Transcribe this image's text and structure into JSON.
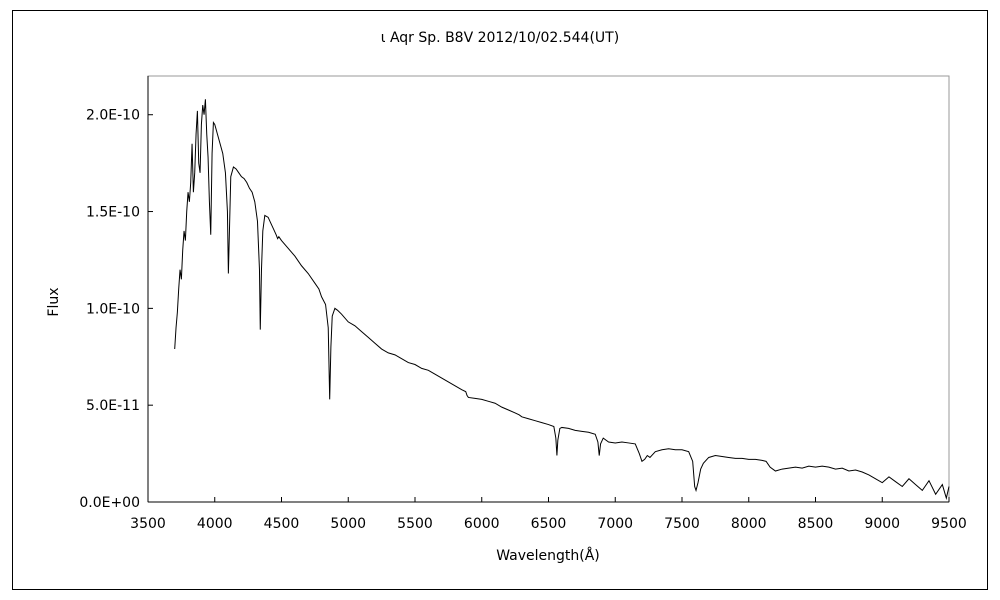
{
  "chart_data": {
    "type": "line",
    "title": "ι  Aqr   Sp. B8V   2012/10/02.544(UT)",
    "xlabel": "Wavelength(Å)",
    "ylabel": "Flux",
    "xlim": [
      3500,
      9500
    ],
    "ylim": [
      0,
      2.2e-10
    ],
    "xticks": [
      "3500",
      "4000",
      "4500",
      "5000",
      "5500",
      "6000",
      "6500",
      "7000",
      "7500",
      "8000",
      "8500",
      "9000",
      "9500"
    ],
    "yticks": [
      "0.0E+00",
      "5.0E-11",
      "1.0E-10",
      "1.5E-10",
      "2.0E-10"
    ],
    "grid": false,
    "series": [
      {
        "values": [
          [
            3700,
            7.9e-11
          ],
          [
            3710,
            9e-11
          ],
          [
            3720,
            9.8e-11
          ],
          [
            3730,
            1.1e-10
          ],
          [
            3740,
            1.2e-10
          ],
          [
            3750,
            1.15e-10
          ],
          [
            3760,
            1.3e-10
          ],
          [
            3770,
            1.4e-10
          ],
          [
            3780,
            1.35e-10
          ],
          [
            3790,
            1.5e-10
          ],
          [
            3800,
            1.6e-10
          ],
          [
            3810,
            1.55e-10
          ],
          [
            3820,
            1.65e-10
          ],
          [
            3830,
            1.85e-10
          ],
          [
            3840,
            1.6e-10
          ],
          [
            3850,
            1.7e-10
          ],
          [
            3860,
            1.9e-10
          ],
          [
            3870,
            2.02e-10
          ],
          [
            3880,
            1.75e-10
          ],
          [
            3890,
            1.7e-10
          ],
          [
            3900,
            1.95e-10
          ],
          [
            3910,
            2.05e-10
          ],
          [
            3920,
            2e-10
          ],
          [
            3930,
            2.08e-10
          ],
          [
            3940,
            1.9e-10
          ],
          [
            3950,
            1.78e-10
          ],
          [
            3960,
            1.55e-10
          ],
          [
            3970,
            1.38e-10
          ],
          [
            3980,
            1.8e-10
          ],
          [
            3990,
            1.96e-10
          ],
          [
            4000,
            1.95e-10
          ],
          [
            4020,
            1.9e-10
          ],
          [
            4040,
            1.85e-10
          ],
          [
            4060,
            1.8e-10
          ],
          [
            4080,
            1.7e-10
          ],
          [
            4095,
            1.5e-10
          ],
          [
            4102,
            1.18e-10
          ],
          [
            4110,
            1.4e-10
          ],
          [
            4120,
            1.68e-10
          ],
          [
            4140,
            1.73e-10
          ],
          [
            4160,
            1.72e-10
          ],
          [
            4180,
            1.7e-10
          ],
          [
            4200,
            1.68e-10
          ],
          [
            4220,
            1.67e-10
          ],
          [
            4240,
            1.65e-10
          ],
          [
            4260,
            1.62e-10
          ],
          [
            4280,
            1.6e-10
          ],
          [
            4300,
            1.55e-10
          ],
          [
            4320,
            1.45e-10
          ],
          [
            4335,
            1.2e-10
          ],
          [
            4341,
            8.9e-11
          ],
          [
            4350,
            1.2e-10
          ],
          [
            4360,
            1.4e-10
          ],
          [
            4375,
            1.48e-10
          ],
          [
            4400,
            1.47e-10
          ],
          [
            4420,
            1.44e-10
          ],
          [
            4440,
            1.41e-10
          ],
          [
            4460,
            1.38e-10
          ],
          [
            4471,
            1.36e-10
          ],
          [
            4480,
            1.37e-10
          ],
          [
            4500,
            1.35e-10
          ],
          [
            4550,
            1.31e-10
          ],
          [
            4600,
            1.27e-10
          ],
          [
            4650,
            1.22e-10
          ],
          [
            4700,
            1.18e-10
          ],
          [
            4750,
            1.13e-10
          ],
          [
            4780,
            1.1e-10
          ],
          [
            4800,
            1.06e-10
          ],
          [
            4830,
            1.02e-10
          ],
          [
            4850,
            9e-11
          ],
          [
            4861,
            5.3e-11
          ],
          [
            4870,
            8e-11
          ],
          [
            4880,
            9.6e-11
          ],
          [
            4900,
            1e-10
          ],
          [
            4920,
            9.9e-11
          ],
          [
            4950,
            9.7e-11
          ],
          [
            5000,
            9.3e-11
          ],
          [
            5050,
            9.1e-11
          ],
          [
            5100,
            8.8e-11
          ],
          [
            5150,
            8.5e-11
          ],
          [
            5200,
            8.2e-11
          ],
          [
            5250,
            7.9e-11
          ],
          [
            5300,
            7.7e-11
          ],
          [
            5350,
            7.6e-11
          ],
          [
            5400,
            7.4e-11
          ],
          [
            5450,
            7.2e-11
          ],
          [
            5500,
            7.1e-11
          ],
          [
            5550,
            6.9e-11
          ],
          [
            5600,
            6.8e-11
          ],
          [
            5650,
            6.6e-11
          ],
          [
            5700,
            6.4e-11
          ],
          [
            5750,
            6.2e-11
          ],
          [
            5800,
            6e-11
          ],
          [
            5850,
            5.8e-11
          ],
          [
            5880,
            5.7e-11
          ],
          [
            5890,
            5.5e-11
          ],
          [
            5900,
            5.4e-11
          ],
          [
            5950,
            5.35e-11
          ],
          [
            6000,
            5.3e-11
          ],
          [
            6050,
            5.2e-11
          ],
          [
            6100,
            5.1e-11
          ],
          [
            6150,
            4.9e-11
          ],
          [
            6200,
            4.75e-11
          ],
          [
            6250,
            4.6e-11
          ],
          [
            6280,
            4.5e-11
          ],
          [
            6300,
            4.4e-11
          ],
          [
            6350,
            4.3e-11
          ],
          [
            6400,
            4.2e-11
          ],
          [
            6450,
            4.1e-11
          ],
          [
            6500,
            4e-11
          ],
          [
            6540,
            3.9e-11
          ],
          [
            6555,
            3.3e-11
          ],
          [
            6563,
            2.4e-11
          ],
          [
            6570,
            3.2e-11
          ],
          [
            6585,
            3.8e-11
          ],
          [
            6600,
            3.85e-11
          ],
          [
            6650,
            3.8e-11
          ],
          [
            6700,
            3.7e-11
          ],
          [
            6750,
            3.65e-11
          ],
          [
            6800,
            3.6e-11
          ],
          [
            6850,
            3.5e-11
          ],
          [
            6870,
            3.1e-11
          ],
          [
            6880,
            2.4e-11
          ],
          [
            6890,
            3e-11
          ],
          [
            6910,
            3.3e-11
          ],
          [
            6950,
            3.1e-11
          ],
          [
            7000,
            3.05e-11
          ],
          [
            7050,
            3.1e-11
          ],
          [
            7100,
            3.05e-11
          ],
          [
            7150,
            3e-11
          ],
          [
            7180,
            2.5e-11
          ],
          [
            7200,
            2.1e-11
          ],
          [
            7220,
            2.2e-11
          ],
          [
            7240,
            2.4e-11
          ],
          [
            7260,
            2.3e-11
          ],
          [
            7300,
            2.6e-11
          ],
          [
            7350,
            2.7e-11
          ],
          [
            7400,
            2.75e-11
          ],
          [
            7450,
            2.7e-11
          ],
          [
            7500,
            2.7e-11
          ],
          [
            7550,
            2.6e-11
          ],
          [
            7580,
            2.1e-11
          ],
          [
            7595,
            8e-12
          ],
          [
            7605,
            6e-12
          ],
          [
            7620,
            1e-11
          ],
          [
            7640,
            1.7e-11
          ],
          [
            7660,
            2e-11
          ],
          [
            7700,
            2.3e-11
          ],
          [
            7750,
            2.4e-11
          ],
          [
            7800,
            2.35e-11
          ],
          [
            7850,
            2.3e-11
          ],
          [
            7900,
            2.25e-11
          ],
          [
            7950,
            2.25e-11
          ],
          [
            8000,
            2.2e-11
          ],
          [
            8050,
            2.2e-11
          ],
          [
            8100,
            2.15e-11
          ],
          [
            8130,
            2.1e-11
          ],
          [
            8160,
            1.8e-11
          ],
          [
            8200,
            1.6e-11
          ],
          [
            8250,
            1.7e-11
          ],
          [
            8300,
            1.75e-11
          ],
          [
            8350,
            1.8e-11
          ],
          [
            8400,
            1.75e-11
          ],
          [
            8450,
            1.85e-11
          ],
          [
            8500,
            1.8e-11
          ],
          [
            8550,
            1.85e-11
          ],
          [
            8600,
            1.8e-11
          ],
          [
            8650,
            1.7e-11
          ],
          [
            8700,
            1.75e-11
          ],
          [
            8750,
            1.6e-11
          ],
          [
            8800,
            1.65e-11
          ],
          [
            8850,
            1.55e-11
          ],
          [
            8900,
            1.4e-11
          ],
          [
            8950,
            1.2e-11
          ],
          [
            9000,
            1e-11
          ],
          [
            9050,
            1.3e-11
          ],
          [
            9100,
            1.05e-11
          ],
          [
            9150,
            8e-12
          ],
          [
            9200,
            1.2e-11
          ],
          [
            9250,
            9e-12
          ],
          [
            9300,
            6e-12
          ],
          [
            9350,
            1.1e-11
          ],
          [
            9400,
            4e-12
          ],
          [
            9450,
            9e-12
          ],
          [
            9480,
            2e-12
          ],
          [
            9500,
            8e-12
          ]
        ]
      }
    ]
  }
}
